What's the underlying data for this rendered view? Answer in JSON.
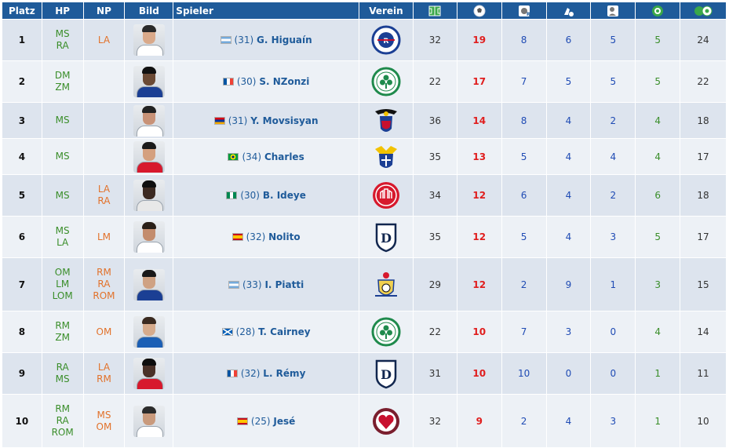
{
  "headers": {
    "rank": "Platz",
    "hp": "HP",
    "np": "NP",
    "photo": "Bild",
    "player": "Spieler",
    "club": "Verein",
    "icons": [
      "appearances-icon",
      "goals-icon",
      "right-foot-goals-icon",
      "left-foot-goals-icon",
      "header-goals-icon",
      "penalty-goals-icon",
      "assists-icon"
    ]
  },
  "rows": [
    {
      "rank": "1",
      "hp": [
        "MS",
        "RA"
      ],
      "np": [
        "LA"
      ],
      "flag": "argentina",
      "age": "(31)",
      "name": "G. Higuaín",
      "club_icon": "rangers-crest-icon",
      "apps": "32",
      "goals": "19",
      "a": "8",
      "b": "6",
      "c": "5",
      "d": "5",
      "e": "24"
    },
    {
      "rank": "2",
      "hp": [
        "DM",
        "ZM"
      ],
      "np": [],
      "flag": "france",
      "age": "(30)",
      "name": "S. NZonzi",
      "club_icon": "celtic-crest-icon",
      "apps": "22",
      "goals": "17",
      "a": "7",
      "b": "5",
      "c": "5",
      "d": "5",
      "e": "22"
    },
    {
      "rank": "3",
      "hp": [
        "MS"
      ],
      "np": [],
      "flag": "armenia",
      "age": "(31)",
      "name": "Y. Movsisyan",
      "club_icon": "inverness-crest-icon",
      "apps": "36",
      "goals": "14",
      "a": "8",
      "b": "4",
      "c": "2",
      "d": "4",
      "e": "18"
    },
    {
      "rank": "4",
      "hp": [
        "MS"
      ],
      "np": [],
      "flag": "brazil",
      "age": "(34)",
      "name": "Charles",
      "club_icon": "st-johnstone-crest-icon",
      "apps": "35",
      "goals": "13",
      "a": "5",
      "b": "4",
      "c": "4",
      "d": "4",
      "e": "17"
    },
    {
      "rank": "5",
      "hp": [
        "MS"
      ],
      "np": [
        "LA",
        "RA"
      ],
      "flag": "nigeria",
      "age": "(30)",
      "name": "B. Ideye",
      "club_icon": "aberdeen-crest-icon",
      "apps": "34",
      "goals": "12",
      "a": "6",
      "b": "4",
      "c": "2",
      "d": "6",
      "e": "18"
    },
    {
      "rank": "6",
      "hp": [
        "MS",
        "LA"
      ],
      "np": [
        "LM"
      ],
      "flag": "spain",
      "age": "(32)",
      "name": "Nolito",
      "club_icon": "dundee-crest-icon",
      "apps": "35",
      "goals": "12",
      "a": "5",
      "b": "4",
      "c": "3",
      "d": "5",
      "e": "17"
    },
    {
      "rank": "7",
      "hp": [
        "OM",
        "LM",
        "LOM"
      ],
      "np": [
        "RM",
        "RA",
        "ROM"
      ],
      "flag": "argentina",
      "age": "(33)",
      "name": "I. Piatti",
      "club_icon": "kilmarnock-crest-icon",
      "apps": "29",
      "goals": "12",
      "a": "2",
      "b": "9",
      "c": "1",
      "d": "3",
      "e": "15"
    },
    {
      "rank": "8",
      "hp": [
        "RM",
        "ZM"
      ],
      "np": [
        "OM"
      ],
      "flag": "scotland",
      "age": "(28)",
      "name": "T. Cairney",
      "club_icon": "celtic-crest-icon",
      "apps": "22",
      "goals": "10",
      "a": "7",
      "b": "3",
      "c": "0",
      "d": "4",
      "e": "14"
    },
    {
      "rank": "9",
      "hp": [
        "RA",
        "MS"
      ],
      "np": [
        "LA",
        "RM"
      ],
      "flag": "france",
      "age": "(32)",
      "name": "L. Rémy",
      "club_icon": "dundee-crest-icon",
      "apps": "31",
      "goals": "10",
      "a": "10",
      "b": "0",
      "c": "0",
      "d": "1",
      "e": "11"
    },
    {
      "rank": "10",
      "hp": [
        "RM",
        "RA",
        "ROM"
      ],
      "np": [
        "MS",
        "OM"
      ],
      "flag": "spain",
      "age": "(25)",
      "name": "Jesé",
      "club_icon": "hearts-crest-icon",
      "apps": "32",
      "goals": "9",
      "a": "2",
      "b": "4",
      "c": "3",
      "d": "1",
      "e": "10"
    }
  ],
  "colors": {
    "header_bg": "#1f5b9a",
    "row_odd": "#dde4ee",
    "row_even": "#edf1f6",
    "position_main": "#3a8e2a",
    "position_secondary": "#e2722b",
    "goals": "#e01e1e",
    "stat_blue": "#1f4bb4",
    "stat_green": "#3a8e2a",
    "player_link": "#1f5b9a"
  }
}
